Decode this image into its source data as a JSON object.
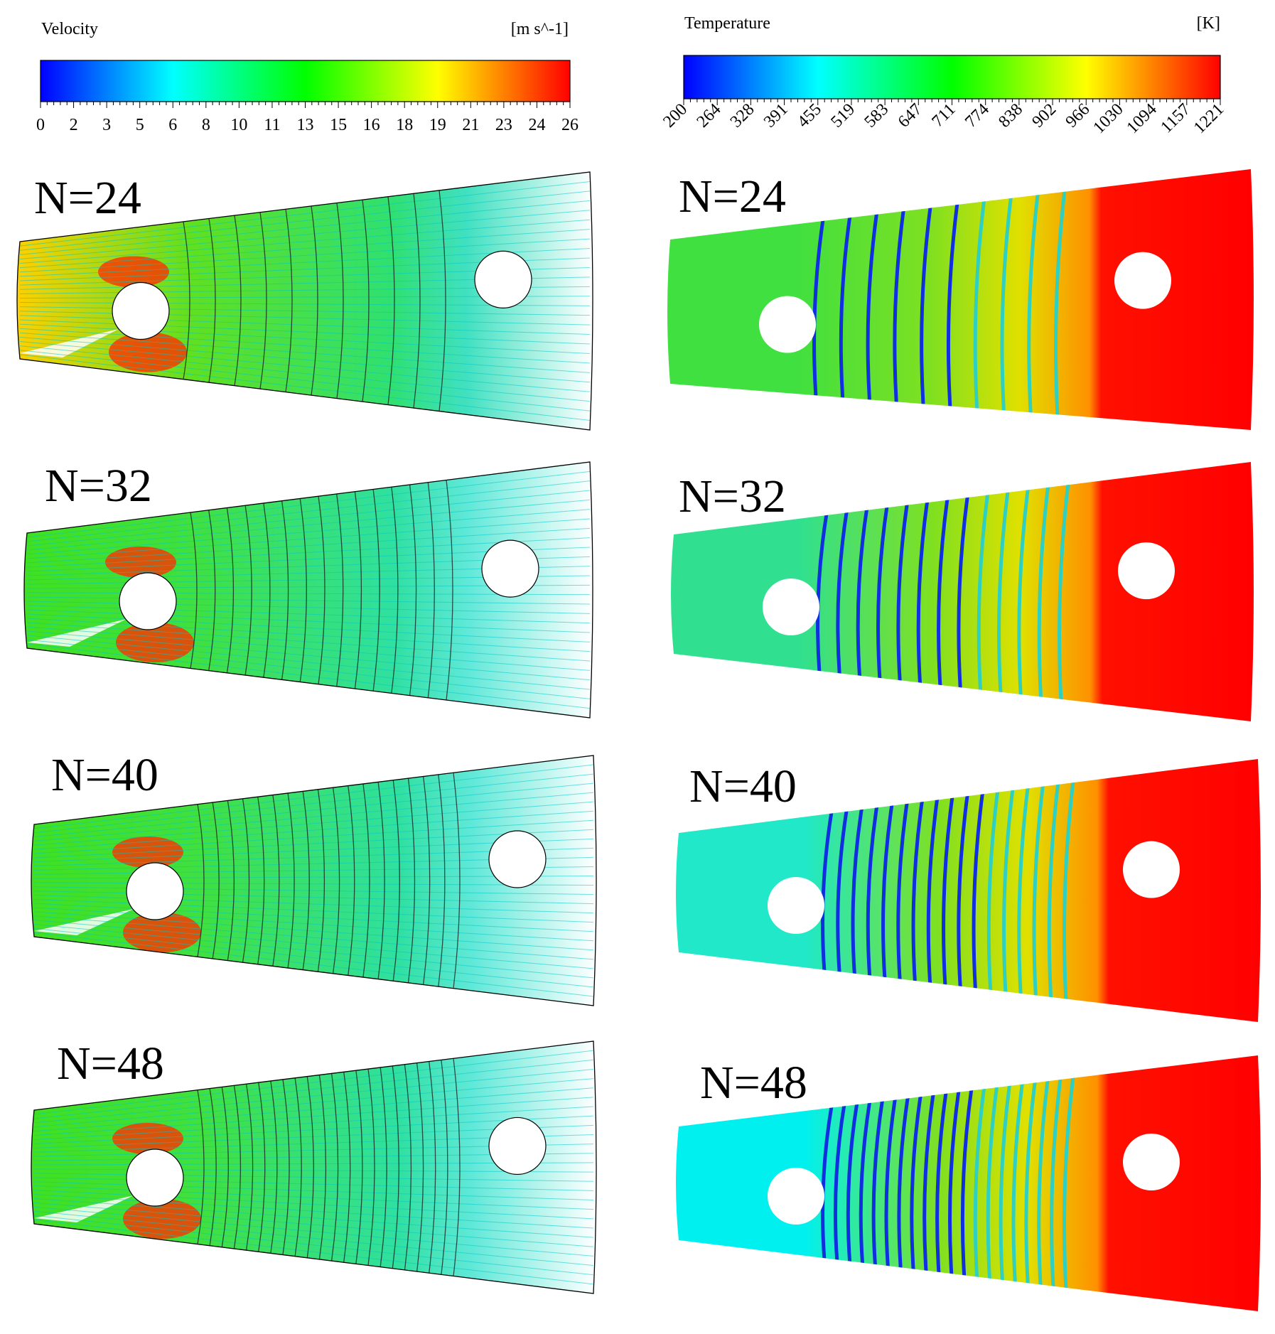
{
  "velocity_legend": {
    "title": "Velocity",
    "unit": "[m s^-1]",
    "ticks": [
      "0",
      "2",
      "3",
      "5",
      "6",
      "8",
      "10",
      "11",
      "13",
      "15",
      "16",
      "18",
      "19",
      "21",
      "23",
      "24",
      "26"
    ],
    "colormap": [
      "#0000ff",
      "#0080ff",
      "#00ffff",
      "#00ff80",
      "#00ff00",
      "#80ff00",
      "#ffff00",
      "#ff8000",
      "#ff0000"
    ]
  },
  "temperature_legend": {
    "title": "Temperature",
    "unit": "[K]",
    "ticks": [
      "200",
      "264",
      "328",
      "391",
      "455",
      "519",
      "583",
      "647",
      "711",
      "774",
      "838",
      "902",
      "966",
      "1030",
      "1094",
      "1157",
      "1221"
    ],
    "colormap": [
      "#0000ff",
      "#0080ff",
      "#00ffff",
      "#00ff80",
      "#00ff00",
      "#80ff00",
      "#ffff00",
      "#ff8000",
      "#ff0000"
    ]
  },
  "cases": [
    {
      "label": "N=24",
      "n": 24,
      "inlet_temperature_color": "#40e040"
    },
    {
      "label": "N=32",
      "n": 32,
      "inlet_temperature_color": "#30e090"
    },
    {
      "label": "N=40",
      "n": 40,
      "inlet_temperature_color": "#20e8c8"
    },
    {
      "label": "N=48",
      "n": 48,
      "inlet_temperature_color": "#00f0f0"
    }
  ]
}
